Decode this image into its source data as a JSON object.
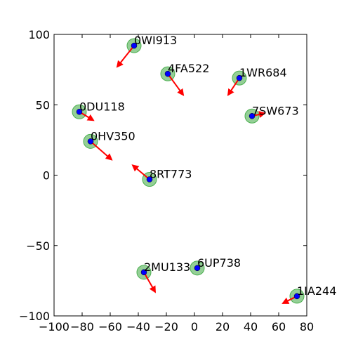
{
  "chart_data": {
    "type": "scatter",
    "title": "",
    "xlabel": "",
    "ylabel": "",
    "xlim": [
      -100,
      80
    ],
    "ylim": [
      -100,
      100
    ],
    "x_ticks": [
      -100,
      -80,
      -60,
      -40,
      -20,
      0,
      20,
      40,
      60,
      80
    ],
    "y_ticks": [
      -100,
      -50,
      0,
      50,
      100
    ],
    "x_tick_labels": [
      "−100",
      "−80",
      "−60",
      "−40",
      "−20",
      "0",
      "20",
      "40",
      "60",
      "80"
    ],
    "y_tick_labels": [
      "−100",
      "−50",
      "0",
      "50",
      "100"
    ],
    "grid": false,
    "colors": {
      "halo": "#4caf50",
      "point": "#0000ff",
      "arrow": "#ff0000"
    },
    "points": [
      {
        "label": "0WI913",
        "x": -43,
        "y": 92,
        "dx": -12,
        "dy": -15
      },
      {
        "label": "4FA522",
        "x": -19,
        "y": 72,
        "dx": 11,
        "dy": -15
      },
      {
        "label": "1WR684",
        "x": 32,
        "y": 69,
        "dx": -8,
        "dy": -12
      },
      {
        "label": "0DU118",
        "x": -82,
        "y": 45,
        "dx": 10,
        "dy": -6
      },
      {
        "label": "7SW673",
        "x": 41,
        "y": 42,
        "dx": 9,
        "dy": 2
      },
      {
        "label": "0HV350",
        "x": -74,
        "y": 24,
        "dx": 15,
        "dy": -13
      },
      {
        "label": "8RT773",
        "x": -32,
        "y": -3,
        "dx": -12,
        "dy": 10
      },
      {
        "label": "6UP738",
        "x": 2,
        "y": -66,
        "dx": 0,
        "dy": 0
      },
      {
        "label": "2MU133",
        "x": -36,
        "y": -69,
        "dx": 8,
        "dy": -14
      },
      {
        "label": "1IA244",
        "x": 73,
        "y": -86,
        "dx": -10,
        "dy": -5
      }
    ]
  }
}
